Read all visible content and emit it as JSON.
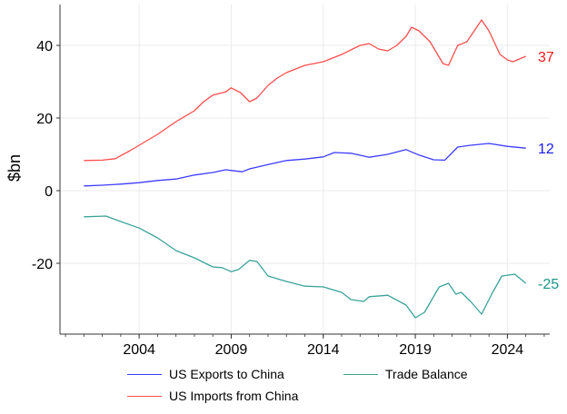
{
  "chart_data": {
    "type": "line",
    "title": "",
    "xlabel": "",
    "ylabel": "$bn",
    "xlim": [
      1999.7,
      2026.3
    ],
    "ylim": [
      -39.5,
      51.25
    ],
    "xticks": [
      2004,
      2009,
      2014,
      2019,
      2024
    ],
    "yticks": [
      -20,
      0,
      20,
      40
    ],
    "grid": true,
    "legend_position": "bottom",
    "series": [
      {
        "name": "US Exports to China",
        "color": "#3c3cff",
        "end_label": "12",
        "end_label_color": "#1a1aff",
        "x": [
          2001,
          2002,
          2003,
          2004,
          2005,
          2006,
          2007,
          2008,
          2008.7,
          2009.6,
          2010,
          2011,
          2012,
          2013,
          2014,
          2014.6,
          2015.5,
          2016.5,
          2017.5,
          2018.5,
          2019.2,
          2020,
          2020.6,
          2021.3,
          2022,
          2023,
          2024,
          2025
        ],
        "y": [
          1.3,
          1.5,
          1.8,
          2.2,
          2.8,
          3.2,
          4.3,
          5.0,
          5.75,
          5.2,
          6.0,
          7.2,
          8.3,
          8.7,
          9.3,
          10.5,
          10.3,
          9.2,
          10.0,
          11.3,
          9.8,
          8.5,
          8.4,
          12.0,
          12.5,
          13.0,
          12.2,
          11.7
        ]
      },
      {
        "name": "US Imports from China",
        "color": "#ff4d4d",
        "end_label": "37",
        "end_label_color": "#ff1a1a",
        "x": [
          2001,
          2002,
          2002.7,
          2003.5,
          2004,
          2005,
          2006,
          2007,
          2007.5,
          2008,
          2008.7,
          2009,
          2009.5,
          2010,
          2010.4,
          2011,
          2011.5,
          2012,
          2013,
          2014,
          2015,
          2016,
          2016.5,
          2017,
          2017.5,
          2018,
          2018.5,
          2018.8,
          2019.2,
          2019.8,
          2020.5,
          2020.8,
          2021.3,
          2021.8,
          2022.6,
          2023,
          2023.6,
          2024,
          2024.3,
          2025
        ],
        "y": [
          8.3,
          8.4,
          8.8,
          11,
          12.5,
          15.5,
          19,
          22,
          24.5,
          26.3,
          27.2,
          28.3,
          27,
          24.5,
          25.5,
          29,
          31,
          32.5,
          34.5,
          35.5,
          37.5,
          40,
          40.5,
          39,
          38.5,
          40,
          42.5,
          45,
          44,
          41,
          35,
          34.5,
          40,
          41,
          47,
          44,
          37.5,
          36,
          35.5,
          37
        ]
      },
      {
        "name": "Trade Balance",
        "color": "#3aa39a",
        "end_label": "-25",
        "end_label_color": "#1a9688",
        "x": [
          2001,
          2002.2,
          2003,
          2004,
          2005,
          2006,
          2007,
          2008,
          2008.5,
          2009,
          2009.4,
          2010,
          2010.4,
          2011,
          2012,
          2013,
          2014,
          2015,
          2015.5,
          2016.2,
          2016.5,
          2017.5,
          2018.5,
          2019,
          2019.5,
          2020.3,
          2020.8,
          2021.2,
          2021.5,
          2022,
          2022.6,
          2023.2,
          2023.7,
          2024.4,
          2025
        ],
        "y": [
          -7.2,
          -7,
          -8.5,
          -10.3,
          -13,
          -16.5,
          -18.5,
          -21,
          -21.2,
          -22.3,
          -21.7,
          -19.2,
          -19.5,
          -23.5,
          -25,
          -26.3,
          -26.5,
          -28,
          -30,
          -30.5,
          -29.2,
          -28.8,
          -31.5,
          -35,
          -33.5,
          -26.5,
          -25.5,
          -28.5,
          -28,
          -30.5,
          -34,
          -28,
          -23.5,
          -23,
          -25.5
        ]
      }
    ]
  }
}
